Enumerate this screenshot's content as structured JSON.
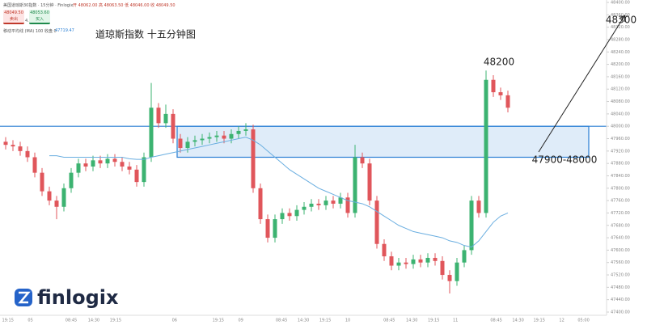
{
  "chart_data": {
    "type": "candlestick",
    "title": "道琼斯指数 十五分钟图",
    "header": {
      "instrument": "美国道琼斯30指数 · 15分钟 · Finlogix",
      "ohlc": "开 48062.00  高 48063.50  低 48046.00  收 48049.50",
      "sell_price": "48049.50",
      "sell_label": "卖出",
      "spread": "4.1",
      "buy_price": "48053.60",
      "buy_label": "买入"
    },
    "brand": "finlogix",
    "up_color": "#3cb371",
    "down_color": "#e0565b",
    "open": [
      47950,
      47940,
      47935,
      47920,
      47900,
      47850,
      47790,
      47760,
      47740,
      47800,
      47850,
      47880,
      47870,
      47890,
      47880,
      47895,
      47885,
      47870,
      47860,
      47820,
      47900,
      48060,
      48010,
      48040,
      47960,
      47930,
      47950,
      47955,
      47960,
      47965,
      47970,
      47960,
      47975,
      47985,
      47990,
      47800,
      47700,
      47640,
      47700,
      47720,
      47710,
      47730,
      47740,
      47750,
      47745,
      47760,
      47750,
      47770,
      47720,
      47900,
      47880,
      47760,
      47620,
      47580,
      47550,
      47560,
      47555,
      47570,
      47560,
      47575,
      47565,
      47520,
      47500,
      47560,
      47600,
      47760,
      47720,
      48150,
      48110,
      48100
    ],
    "high": [
      47965,
      47955,
      47950,
      47935,
      47915,
      47865,
      47805,
      47775,
      47815,
      47865,
      47895,
      47895,
      47905,
      47905,
      47910,
      47910,
      47900,
      47885,
      47875,
      47915,
      48140,
      48075,
      48070,
      48055,
      47975,
      47965,
      47970,
      47975,
      47980,
      47985,
      47985,
      47990,
      48000,
      48010,
      48005,
      47815,
      47715,
      47715,
      47735,
      47735,
      47745,
      47755,
      47765,
      47765,
      47775,
      47775,
      47785,
      47785,
      47940,
      47915,
      47895,
      47775,
      47635,
      47595,
      47575,
      47575,
      47585,
      47585,
      47590,
      47590,
      47580,
      47535,
      47575,
      47615,
      47775,
      47775,
      48180,
      48165,
      48125,
      48115
    ],
    "low": [
      47925,
      47920,
      47905,
      47885,
      47835,
      47775,
      47745,
      47700,
      47725,
      47785,
      47835,
      47855,
      47855,
      47865,
      47865,
      47870,
      47855,
      47845,
      47805,
      47805,
      47885,
      47995,
      47995,
      47945,
      47915,
      47915,
      47935,
      47940,
      47945,
      47950,
      47945,
      47945,
      47960,
      47970,
      47785,
      47685,
      47625,
      47625,
      47685,
      47695,
      47695,
      47715,
      47725,
      47730,
      47730,
      47735,
      47735,
      47705,
      47705,
      47865,
      47745,
      47605,
      47565,
      47535,
      47535,
      47540,
      47540,
      47545,
      47545,
      47550,
      47505,
      47460,
      47485,
      47545,
      47585,
      47705,
      47705,
      48095,
      48085,
      48045
    ],
    "close": [
      47940,
      47935,
      47920,
      47900,
      47850,
      47790,
      47760,
      47740,
      47800,
      47850,
      47880,
      47870,
      47890,
      47880,
      47895,
      47885,
      47870,
      47860,
      47820,
      47900,
      48060,
      48010,
      48040,
      47960,
      47930,
      47950,
      47955,
      47960,
      47965,
      47970,
      47960,
      47975,
      47985,
      47990,
      47800,
      47700,
      47640,
      47700,
      47720,
      47710,
      47730,
      47740,
      47750,
      47745,
      47760,
      47750,
      47770,
      47720,
      47900,
      47880,
      47760,
      47620,
      47580,
      47550,
      47560,
      47555,
      47570,
      47560,
      47575,
      47565,
      47520,
      47500,
      47560,
      47600,
      47760,
      47720,
      48150,
      48110,
      48100,
      48060
    ],
    "ma": {
      "name": "移动平均线 (MA) 100 收盘 0",
      "value_text": "47719.47",
      "color": "#6aaee0",
      "values": [
        null,
        null,
        null,
        null,
        null,
        null,
        47905,
        47905,
        47900,
        47900,
        47900,
        47900,
        47900,
        47900,
        47900,
        47900,
        47900,
        47895,
        47893,
        47893,
        47900,
        47905,
        47910,
        47915,
        47920,
        47925,
        47930,
        47935,
        47940,
        47945,
        47950,
        47955,
        47960,
        47965,
        47955,
        47940,
        47920,
        47900,
        47880,
        47860,
        47845,
        47830,
        47815,
        47800,
        47790,
        47780,
        47770,
        47760,
        47755,
        47750,
        47740,
        47725,
        47710,
        47695,
        47680,
        47670,
        47660,
        47655,
        47650,
        47645,
        47640,
        47630,
        47625,
        47615,
        47610,
        47630,
        47660,
        47690,
        47710,
        47720
      ]
    },
    "zone": {
      "low": 47900,
      "high": 48000,
      "color": "#2a7fd4",
      "label": "47900-48000"
    },
    "annotations": [
      "48300",
      "48200"
    ],
    "ylim": [
      47400,
      48400
    ],
    "yticks": [
      {
        "value": 48400,
        "label": "48400.00"
      },
      {
        "value": 48360,
        "label": "48360.00"
      },
      {
        "value": 48320,
        "label": "48320.00"
      },
      {
        "value": 48280,
        "label": "48280.00"
      },
      {
        "value": 48240,
        "label": "48240.00"
      },
      {
        "value": 48200,
        "label": "48200.00"
      },
      {
        "value": 48160,
        "label": "48160.00"
      },
      {
        "value": 48120,
        "label": "48120.00"
      },
      {
        "value": 48080,
        "label": "48080.00"
      },
      {
        "value": 48040,
        "label": "48040.00"
      },
      {
        "value": 48000,
        "label": "48000.00"
      },
      {
        "value": 47960,
        "label": "47960.00"
      },
      {
        "value": 47920,
        "label": "47920.00"
      },
      {
        "value": 47880,
        "label": "47880.00"
      },
      {
        "value": 47840,
        "label": "47840.00"
      },
      {
        "value": 47800,
        "label": "47800.00"
      },
      {
        "value": 47760,
        "label": "47760.00"
      },
      {
        "value": 47720,
        "label": "47720.00"
      },
      {
        "value": 47680,
        "label": "47680.00"
      },
      {
        "value": 47640,
        "label": "47640.00"
      },
      {
        "value": 47600,
        "label": "47600.00"
      },
      {
        "value": 47560,
        "label": "47560.00"
      },
      {
        "value": 47520,
        "label": "47520.00"
      },
      {
        "value": 47480,
        "label": "47480.00"
      },
      {
        "value": 47440,
        "label": "47440.00"
      },
      {
        "value": 47400,
        "label": "47400.00"
      }
    ],
    "xticks": [
      {
        "value": 0.3,
        "label": "19:15"
      },
      {
        "value": 3.4,
        "label": "05"
      },
      {
        "value": 9,
        "label": "08:45"
      },
      {
        "value": 12.1,
        "label": "14:30"
      },
      {
        "value": 15.1,
        "label": "19:15"
      },
      {
        "value": 23.2,
        "label": "06"
      },
      {
        "value": 29.2,
        "label": "19:15"
      },
      {
        "value": 32.3,
        "label": "09"
      },
      {
        "value": 37.9,
        "label": "08:45"
      },
      {
        "value": 40.9,
        "label": "14:30"
      },
      {
        "value": 43.9,
        "label": "19:15"
      },
      {
        "value": 47,
        "label": "10"
      },
      {
        "value": 52.7,
        "label": "08:45"
      },
      {
        "value": 55.8,
        "label": "14:30"
      },
      {
        "value": 58.8,
        "label": "19:15"
      },
      {
        "value": 61.8,
        "label": "11"
      },
      {
        "value": 67.4,
        "label": "08:45"
      },
      {
        "value": 70.4,
        "label": "14:30"
      },
      {
        "value": 73.3,
        "label": "19:15"
      },
      {
        "value": 76.4,
        "label": "12"
      },
      {
        "value": 79.4,
        "label": "05:00"
      }
    ]
  }
}
